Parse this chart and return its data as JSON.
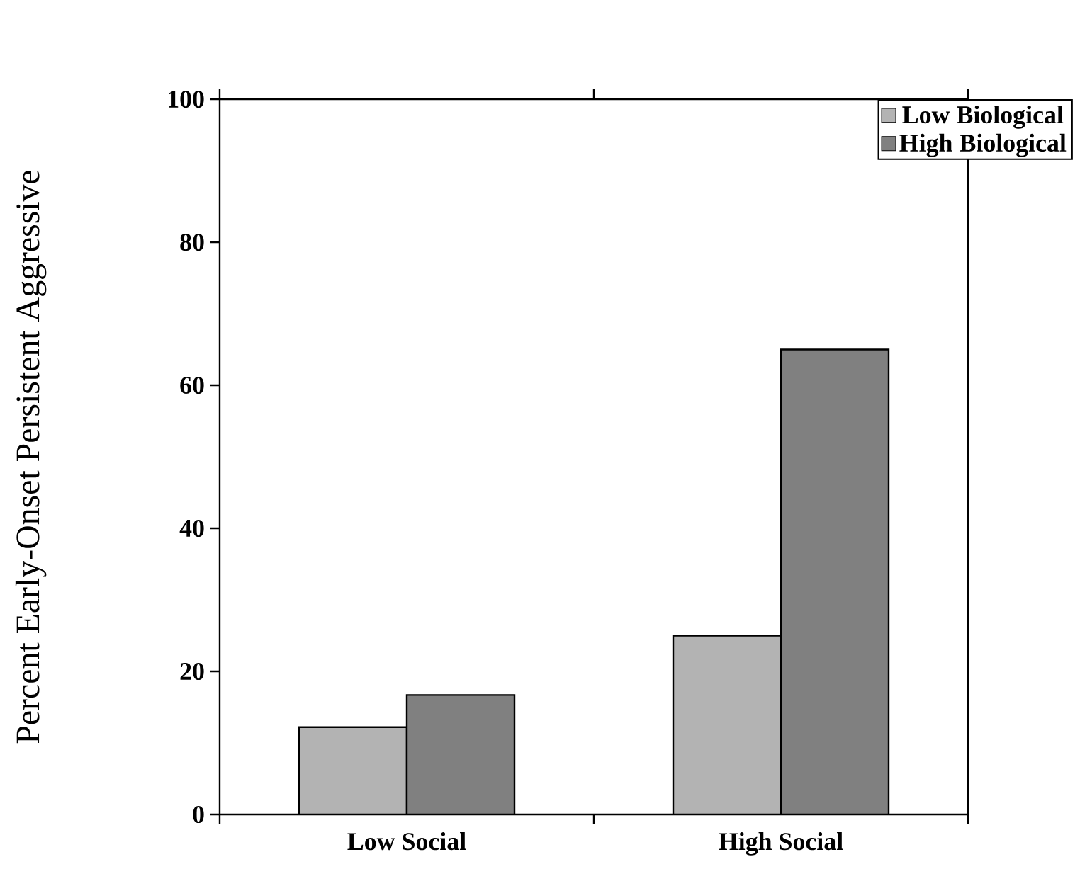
{
  "chart_data": {
    "type": "bar",
    "ylabel": "Percent Early-Onset Persistent Aggressive",
    "categories": [
      "Low Social",
      "High Social"
    ],
    "series": [
      {
        "name": "Low Biological",
        "color": "#b3b3b3",
        "values": [
          12.2,
          25.0
        ]
      },
      {
        "name": "High Biological",
        "color": "#808080",
        "values": [
          16.7,
          65.0
        ]
      }
    ],
    "ylim": [
      0,
      100
    ],
    "yticks": [
      0,
      20,
      40,
      60,
      80,
      100
    ],
    "grid": false,
    "legend": "top right"
  }
}
